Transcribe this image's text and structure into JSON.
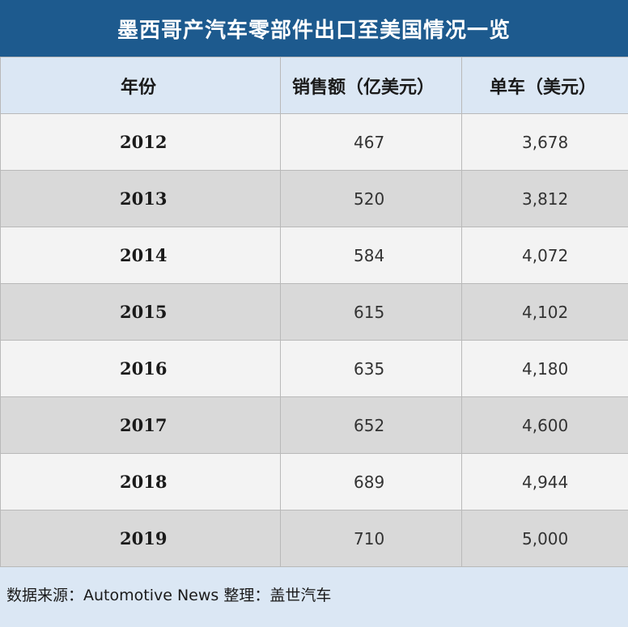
{
  "title": "墨西哥产汽车零部件出口至美国情况一览",
  "chart_data": {
    "type": "table",
    "columns": [
      "年份",
      "销售额（亿美元）",
      "单车（美元）"
    ],
    "rows": [
      {
        "year": "2012",
        "sales": "467",
        "unit": "3,678"
      },
      {
        "year": "2013",
        "sales": "520",
        "unit": "3,812"
      },
      {
        "year": "2014",
        "sales": "584",
        "unit": "4,072"
      },
      {
        "year": "2015",
        "sales": "615",
        "unit": "4,102"
      },
      {
        "year": "2016",
        "sales": "635",
        "unit": "4,180"
      },
      {
        "year": "2017",
        "sales": "652",
        "unit": "4,600"
      },
      {
        "year": "2018",
        "sales": "689",
        "unit": "4,944"
      },
      {
        "year": "2019",
        "sales": "710",
        "unit": "5,000"
      }
    ]
  },
  "colors": {
    "title_bg": "#1d5a8e",
    "header_bg": "#dbe7f4",
    "row_light": "#f3f3f3",
    "row_dark": "#d9d9d9"
  },
  "footer": "数据来源：Automotive News 整理：盖世汽车"
}
